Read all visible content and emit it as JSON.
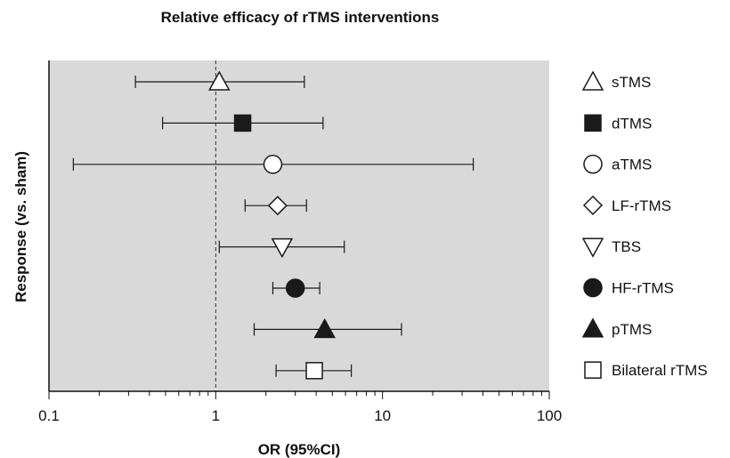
{
  "chart_data": {
    "type": "scatter",
    "subtype": "forest-plot",
    "title": "Relative efficacy of rTMS interventions",
    "xlabel": "OR (95%CI)",
    "ylabel": "Response (vs. sham)",
    "x_scale": "log",
    "xlim": [
      0.1,
      100
    ],
    "x_ticks": [
      "0.1",
      "1",
      "10",
      "100"
    ],
    "reference_line": 1,
    "plot_background": "#d9d9d9",
    "legend_position": "right",
    "series": [
      {
        "name": "sTMS",
        "or": 1.05,
        "ci": [
          0.33,
          3.4
        ],
        "marker": "triangle-up-open"
      },
      {
        "name": "dTMS",
        "or": 1.45,
        "ci": [
          0.48,
          4.4
        ],
        "marker": "square-filled"
      },
      {
        "name": "aTMS",
        "or": 2.2,
        "ci": [
          0.14,
          35
        ],
        "marker": "circle-open"
      },
      {
        "name": "LF-rTMS",
        "or": 2.35,
        "ci": [
          1.5,
          3.5
        ],
        "marker": "diamond-open"
      },
      {
        "name": "TBS",
        "or": 2.5,
        "ci": [
          1.05,
          5.9
        ],
        "marker": "triangle-down-open"
      },
      {
        "name": "HF-rTMS",
        "or": 3.0,
        "ci": [
          2.2,
          4.2
        ],
        "marker": "circle-filled"
      },
      {
        "name": "pTMS",
        "or": 4.5,
        "ci": [
          1.7,
          13
        ],
        "marker": "triangle-up-filled"
      },
      {
        "name": "Bilateral rTMS",
        "or": 3.9,
        "ci": [
          2.3,
          6.5
        ],
        "marker": "square-open"
      }
    ]
  }
}
